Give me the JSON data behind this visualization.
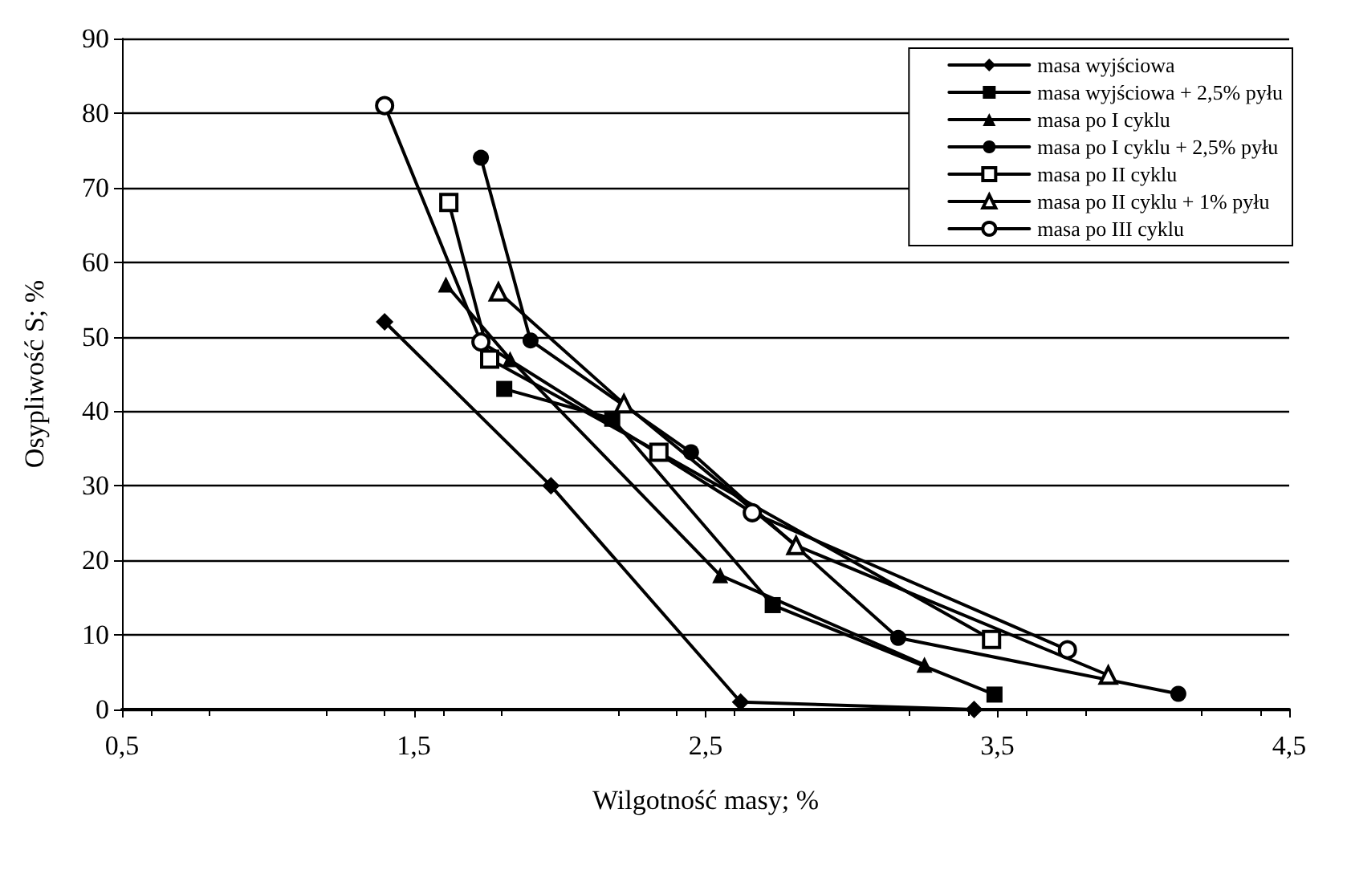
{
  "chart_data": {
    "type": "line",
    "xlabel": "Wilgotność masy; %",
    "ylabel": "Osypliwość S; %",
    "xlim": [
      0.5,
      4.5
    ],
    "xticks": [
      {
        "value": 0.5,
        "label": "0,5"
      },
      {
        "value": 1.5,
        "label": "1,5"
      },
      {
        "value": 2.5,
        "label": "2,5"
      },
      {
        "value": 3.5,
        "label": "3,5"
      },
      {
        "value": 4.5,
        "label": "4,5"
      }
    ],
    "ylim": [
      0,
      90
    ],
    "yticks": [
      0,
      10,
      20,
      30,
      40,
      50,
      60,
      70,
      80,
      90
    ],
    "grid": "y",
    "legend": "top right",
    "line_style": "solid",
    "series": [
      {
        "name": "masa wyjściowa",
        "color": "#000000",
        "marker": "diamond",
        "x": [
          1.4,
          1.97,
          2.62,
          3.42
        ],
        "values": [
          52,
          30,
          1,
          0
        ]
      },
      {
        "name": "masa wyjściowa + 2,5% pyłu",
        "color": "#000000",
        "marker": "square",
        "x": [
          1.81,
          2.18,
          2.73,
          3.49
        ],
        "values": [
          43,
          39,
          14,
          2
        ]
      },
      {
        "name": "masa po I cyklu",
        "color": "#000000",
        "marker": "triangle",
        "x": [
          1.61,
          1.83,
          2.55,
          3.25
        ],
        "values": [
          57,
          47,
          18,
          6
        ]
      },
      {
        "name": "masa po I cyklu + 2,5% pyłu",
        "color": "#000000",
        "marker": "circle",
        "x": [
          1.73,
          1.9,
          2.45,
          3.16,
          4.12
        ],
        "values": [
          74,
          49.5,
          34.5,
          9.6,
          2.1
        ]
      },
      {
        "name": "masa po II cyklu",
        "color": "#000000",
        "marker": "square",
        "x": [
          1.62,
          1.76,
          2.34,
          3.48
        ],
        "values": [
          68,
          47,
          34.5,
          9.4
        ]
      },
      {
        "name": "masa po II cyklu + 1% pyłu",
        "color": "#000000",
        "marker": "triangle",
        "x": [
          1.79,
          2.22,
          2.81,
          3.88
        ],
        "values": [
          56,
          41,
          22,
          4.6
        ]
      },
      {
        "name": "masa po III cyklu",
        "color": "#000000",
        "marker": "circle",
        "x": [
          1.4,
          1.73,
          2.66,
          3.74
        ],
        "values": [
          81,
          49.3,
          26.4,
          8
        ]
      }
    ]
  }
}
